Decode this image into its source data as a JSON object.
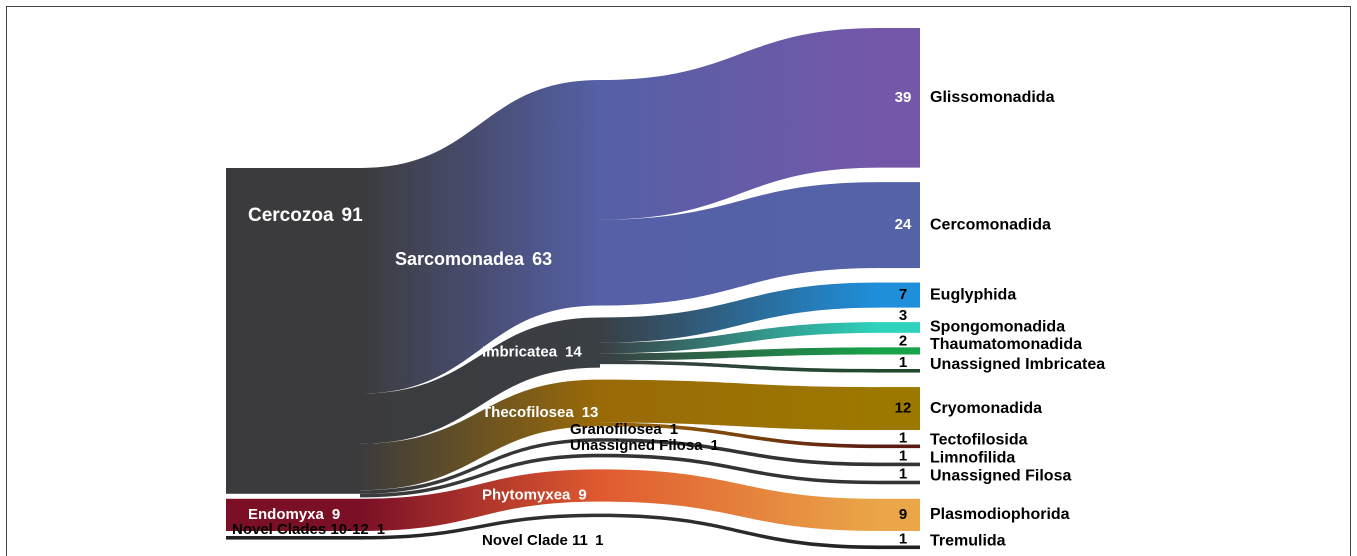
{
  "chart_data": {
    "type": "sankey",
    "nodes": [
      {
        "name": "Cercozoa",
        "value": 91,
        "color": "#3b3b3d",
        "children": [
          {
            "name": "Sarcomonadea",
            "value": 63,
            "color": "#5560a6",
            "children": [
              {
                "name": "Glissomonadida",
                "value": 39,
                "color": "#7457a8"
              },
              {
                "name": "Cercomonadida",
                "value": 24,
                "color": "#5462a8"
              }
            ]
          },
          {
            "name": "Imbricatea",
            "value": 14,
            "color": "#3a3f44",
            "children": [
              {
                "name": "Euglyphida",
                "value": 7,
                "color": "#1f8fdc"
              },
              {
                "name": "Spongomonadida",
                "value": 3,
                "color": "#2fd3bd"
              },
              {
                "name": "Thaumatomonadida",
                "value": 2,
                "color": "#17a34a"
              },
              {
                "name": "Unassigned Imbricatea",
                "value": 1,
                "color": "#1f4a2c"
              }
            ]
          },
          {
            "name": "Thecofilosea",
            "value": 13,
            "color": "#9a6a08",
            "children": [
              {
                "name": "Cryomonadida",
                "value": 12,
                "color": "#9c7800"
              },
              {
                "name": "Tectofilosida",
                "value": 1,
                "color": "#5a1a12"
              }
            ]
          },
          {
            "name": "Granofilosea",
            "value": 1,
            "color": "#333333",
            "children": [
              {
                "name": "Limnofilida",
                "value": 1,
                "color": "#333333"
              }
            ]
          },
          {
            "name": "Unassigned Filosa",
            "value": 1,
            "color": "#333333",
            "children": [
              {
                "name": "Unassigned Filosa",
                "value": 1,
                "color": "#333333"
              }
            ]
          }
        ]
      },
      {
        "name": "Endomyxa",
        "value": 9,
        "color": "#7a0f26",
        "children": [
          {
            "name": "Phytomyxea",
            "value": 9,
            "color": "#e05a30",
            "children": [
              {
                "name": "Plasmodiophorida",
                "value": 9,
                "color": "#eaa648"
              }
            ]
          }
        ]
      },
      {
        "name": "Novel Clades 10-12",
        "value": 1,
        "color": "#222222",
        "children": [
          {
            "name": "Novel Clade 11",
            "value": 1,
            "color": "#333333",
            "children": [
              {
                "name": "Tremulida",
                "value": 1,
                "color": "#222222"
              }
            ]
          }
        ]
      }
    ]
  }
}
